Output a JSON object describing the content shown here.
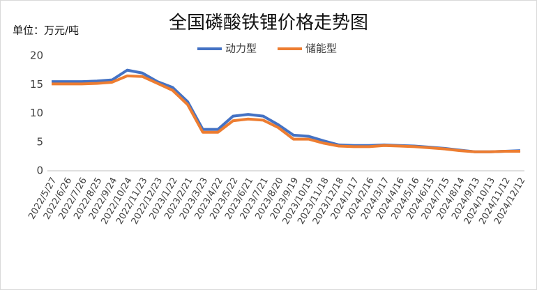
{
  "chart_data": {
    "type": "line",
    "title": "全国磷酸铁锂价格走势图",
    "y_label": "单位：万元/吨",
    "categories": [
      "2022/5/27",
      "2022/6/26",
      "2022/7/26",
      "2022/8/25",
      "2022/9/24",
      "2022/10/24",
      "2022/11/23",
      "2022/12/23",
      "2023/1/22",
      "2023/2/21",
      "2023/3/23",
      "2023/4/22",
      "2023/5/22",
      "2023/6/21",
      "2023/7/21",
      "2023/8/20",
      "2023/9/19",
      "2023/10/19",
      "2023/11/18",
      "2023/12/18",
      "2024/1/17",
      "2024/2/16",
      "2024/3/17",
      "2024/4/16",
      "2024/5/16",
      "2024/6/15",
      "2024/7/15",
      "2024/8/14",
      "2024/9/13",
      "2024/10/13",
      "2024/11/12",
      "2024/12/12"
    ],
    "series": [
      {
        "name": "动力型",
        "color": "#4472c4",
        "values": [
          15.5,
          15.5,
          15.5,
          15.6,
          15.8,
          17.5,
          17.0,
          15.5,
          14.5,
          12.0,
          7.2,
          7.2,
          9.5,
          9.8,
          9.5,
          8.0,
          6.2,
          6.0,
          5.2,
          4.5,
          4.4,
          4.4,
          4.5,
          4.4,
          4.3,
          4.1,
          3.9,
          3.6,
          3.3,
          3.3,
          3.4,
          3.5
        ]
      },
      {
        "name": "储能型",
        "color": "#ed7d31",
        "values": [
          15.1,
          15.1,
          15.1,
          15.2,
          15.4,
          16.5,
          16.4,
          15.2,
          14.0,
          11.5,
          6.7,
          6.7,
          8.7,
          9.0,
          8.8,
          7.5,
          5.5,
          5.5,
          4.8,
          4.3,
          4.2,
          4.2,
          4.4,
          4.3,
          4.2,
          4.0,
          3.8,
          3.5,
          3.3,
          3.3,
          3.4,
          3.4
        ]
      }
    ],
    "ylim": [
      0,
      20
    ],
    "yticks": [
      0,
      5,
      10,
      15,
      20
    ],
    "grid": false,
    "legend": "top"
  }
}
